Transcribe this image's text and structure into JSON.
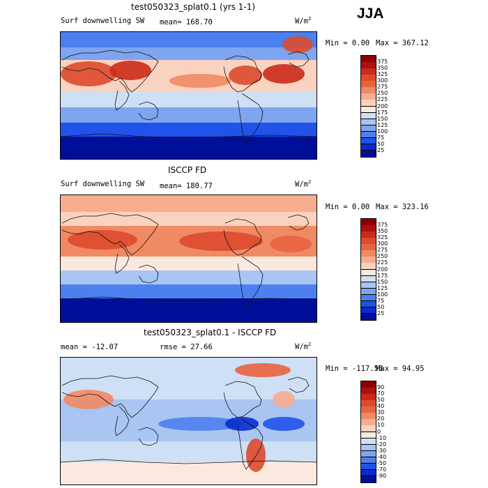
{
  "season": "JJA",
  "panels": [
    {
      "title": "test050323_splat0.1 (yrs 1-1)",
      "left_label": "Surf downwelling SW",
      "center_label": "mean= 168.70",
      "units": "W/m",
      "units_sup": "2",
      "min_text": "Min =   0.00",
      "max_text": "Max = 367.12",
      "colorbar": {
        "labels": [
          "375",
          "350",
          "325",
          "300",
          "275",
          "250",
          "225",
          "200",
          "175",
          "150",
          "125",
          "100",
          "75",
          "50",
          "25"
        ],
        "colors": [
          "#8b0000",
          "#b00f0f",
          "#cc2a1a",
          "#dd4a2c",
          "#e8643f",
          "#f08a64",
          "#f6ad90",
          "#fad3c0",
          "#fbe9df",
          "#cfe0f6",
          "#a9c5f2",
          "#7ea5f0",
          "#4d80ef",
          "#2152ea",
          "#0a2bd0",
          "#000f9a"
        ]
      },
      "map_style": "model"
    },
    {
      "title": "ISCCP FD",
      "left_label": "Surf downwelling SW",
      "center_label": "mean= 180.77",
      "units": "W/m",
      "units_sup": "2",
      "min_text": "Min =   0.00",
      "max_text": "Max = 323.16",
      "colorbar": {
        "labels": [
          "375",
          "350",
          "325",
          "300",
          "275",
          "250",
          "225",
          "200",
          "175",
          "150",
          "125",
          "100",
          "75",
          "50",
          "25"
        ],
        "colors": [
          "#8b0000",
          "#b00f0f",
          "#cc2a1a",
          "#dd4a2c",
          "#e8643f",
          "#f08a64",
          "#f6ad90",
          "#fad3c0",
          "#fbe9df",
          "#cfe0f6",
          "#a9c5f2",
          "#7ea5f0",
          "#4d80ef",
          "#2152ea",
          "#0a2bd0",
          "#000f9a"
        ]
      },
      "map_style": "obs"
    },
    {
      "title": "test050323_splat0.1 - ISCCP FD",
      "left_label": "mean = -12.07",
      "center_label": "rmse =  27.66",
      "units": "W/m",
      "units_sup": "2",
      "min_text": "Min = -117.58",
      "max_text": "Max =  94.95",
      "colorbar": {
        "labels": [
          "90",
          "70",
          "50",
          "40",
          "30",
          "20",
          "10",
          "0",
          "-10",
          "-20",
          "-30",
          "-40",
          "-50",
          "-70",
          "-90"
        ],
        "colors": [
          "#8b0000",
          "#b00f0f",
          "#cc2a1a",
          "#dd4a2c",
          "#e8643f",
          "#f08a64",
          "#f6ad90",
          "#fad3c0",
          "#fbe9df",
          "#cfe0f6",
          "#a9c5f2",
          "#7ea5f0",
          "#4d80ef",
          "#2152ea",
          "#0a2bd0",
          "#000f9a"
        ]
      },
      "map_style": "diff"
    }
  ]
}
